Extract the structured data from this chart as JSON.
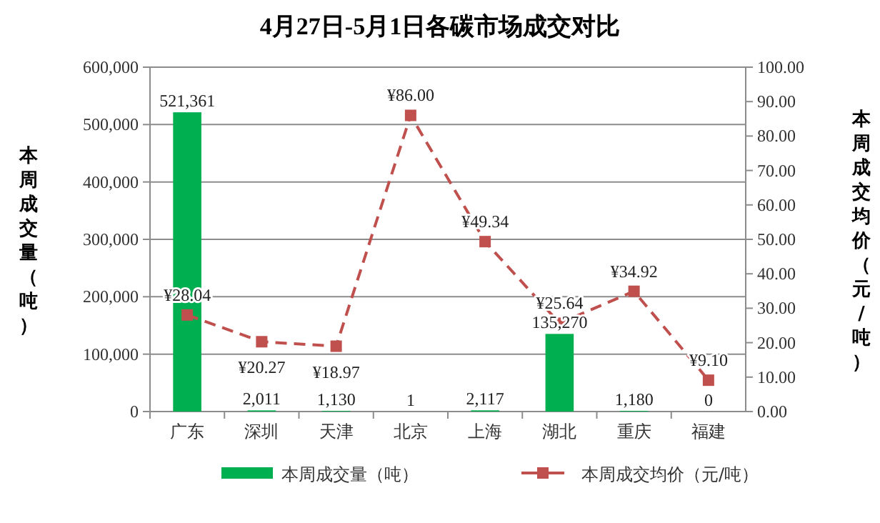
{
  "chart_data": {
    "type": "bar",
    "title": "4月27日-5月1日各碳市场成交对比",
    "ylabel": "本周成交量（吨）",
    "y2label": "本周成交均价（元/吨）",
    "categories": [
      "广东",
      "深圳",
      "天津",
      "北京",
      "上海",
      "湖北",
      "重庆",
      "福建"
    ],
    "series": [
      {
        "name": "本周成交量（吨）",
        "color": "#00b050",
        "values": [
          521361,
          2011,
          1130,
          1,
          2117,
          135270,
          1180,
          0
        ],
        "value_labels": [
          "521,361",
          "2,011",
          "1,130",
          "1",
          "2,117",
          "135,270",
          "1,180",
          "0"
        ]
      },
      {
        "name": "本周成交均价（元/吨）",
        "type": "line",
        "axis": "y2",
        "color": "#c0504d",
        "marker": "square",
        "line_style": "dashed",
        "values": [
          28.04,
          20.27,
          18.97,
          86.0,
          49.34,
          25.64,
          34.92,
          9.1
        ],
        "value_labels": [
          "¥28.04",
          "¥20.27",
          "¥18.97",
          "¥86.00",
          "¥49.34",
          "¥25.64",
          "¥34.92",
          "¥9.10"
        ]
      }
    ],
    "ylim": [
      0,
      600000
    ],
    "yticks": [
      {
        "value": 0,
        "label": "0"
      },
      {
        "value": 100000,
        "label": "100,000"
      },
      {
        "value": 200000,
        "label": "200,000"
      },
      {
        "value": 300000,
        "label": "300,000"
      },
      {
        "value": 400000,
        "label": "400,000"
      },
      {
        "value": 500000,
        "label": "500,000"
      },
      {
        "value": 600000,
        "label": "600,000"
      }
    ],
    "y2lim": [
      0,
      100
    ],
    "y2ticks": [
      {
        "value": 0,
        "label": "0.00"
      },
      {
        "value": 10,
        "label": "10.00"
      },
      {
        "value": 20,
        "label": "20.00"
      },
      {
        "value": 30,
        "label": "30.00"
      },
      {
        "value": 40,
        "label": "40.00"
      },
      {
        "value": 50,
        "label": "50.00"
      },
      {
        "value": 60,
        "label": "60.00"
      },
      {
        "value": 70,
        "label": "70.00"
      },
      {
        "value": 80,
        "label": "80.00"
      },
      {
        "value": 90,
        "label": "90.00"
      },
      {
        "value": 100,
        "label": "100.00"
      }
    ],
    "grid": "y",
    "legend": "bottom"
  }
}
